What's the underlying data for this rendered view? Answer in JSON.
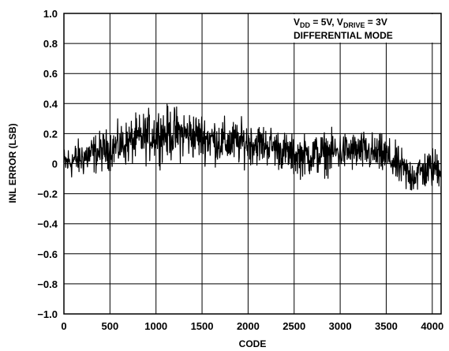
{
  "chart_data": {
    "type": "line",
    "title": "",
    "xlabel": "CODE",
    "ylabel": "INL ERROR (LSB)",
    "xlim": [
      0,
      4096
    ],
    "ylim": [
      -1.0,
      1.0
    ],
    "x_ticks": [
      0,
      500,
      1000,
      1500,
      2000,
      2500,
      3000,
      3500,
      4000
    ],
    "x_tick_labels": [
      "0",
      "500",
      "1000",
      "1500",
      "2000",
      "2500",
      "3000",
      "3500",
      "4000"
    ],
    "y_ticks": [
      1.0,
      0.8,
      0.6,
      0.4,
      0.2,
      0,
      -0.2,
      -0.4,
      -0.6,
      -0.8,
      -1.0
    ],
    "y_tick_labels": [
      "1.0",
      "0.8",
      "0.6",
      "0.4",
      "0.2",
      "0",
      "−0.2",
      "−0.4",
      "−0.6",
      "−0.8",
      "−1.0"
    ],
    "grid": true,
    "legend_position": "top-right",
    "annotation": {
      "line1_parts": [
        {
          "text": "V",
          "sub": false
        },
        {
          "text": "DD",
          "sub": true
        },
        {
          "text": " = 5V, V",
          "sub": false
        },
        {
          "text": "DRIVE",
          "sub": true
        },
        {
          "text": " = 3V",
          "sub": false
        }
      ],
      "line2": "DIFFERENTIAL MODE"
    },
    "series": [
      {
        "color": "#000000",
        "envelope_x": [
          0,
          250,
          500,
          750,
          1000,
          1250,
          1500,
          1750,
          2000,
          2250,
          2500,
          2750,
          3000,
          3250,
          3500,
          3750,
          4000,
          4095
        ],
        "envelope_mid": [
          0.0,
          0.05,
          0.1,
          0.15,
          0.2,
          0.2,
          0.18,
          0.14,
          0.14,
          0.12,
          0.05,
          0.06,
          0.08,
          0.08,
          0.05,
          -0.08,
          -0.03,
          -0.02
        ],
        "envelope_amp": [
          0.1,
          0.12,
          0.12,
          0.14,
          0.16,
          0.16,
          0.14,
          0.14,
          0.13,
          0.12,
          0.12,
          0.13,
          0.12,
          0.12,
          0.12,
          0.12,
          0.12,
          0.12
        ],
        "min": -0.38,
        "max": 0.53
      }
    ]
  }
}
